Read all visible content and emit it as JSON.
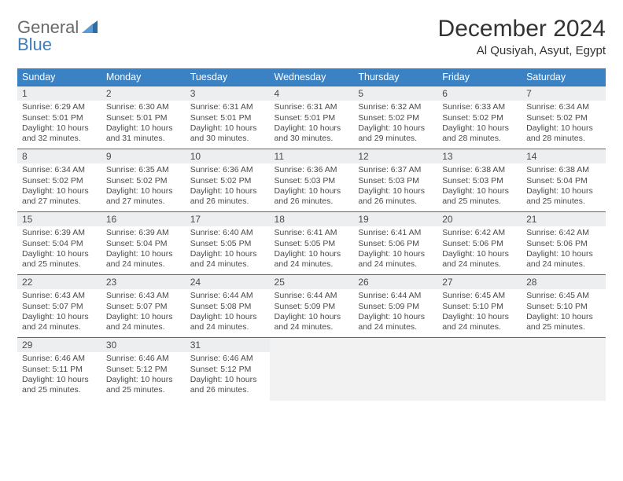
{
  "logo": {
    "line1": "General",
    "line2": "Blue"
  },
  "title": "December 2024",
  "location": "Al Qusiyah, Asyut, Egypt",
  "colors": {
    "header_bg": "#3b82c4",
    "header_text": "#ffffff",
    "row_divider": "#3b6f9f",
    "daynum_bg": "#eceef0",
    "empty_bg": "#f2f2f2",
    "body_text": "#4a4a4a",
    "logo_gray": "#6a6a6a",
    "logo_blue": "#3b7fbf"
  },
  "typography": {
    "title_fontsize": 30,
    "location_fontsize": 15,
    "header_fontsize": 12.5,
    "daynum_fontsize": 12,
    "content_fontsize": 10.5
  },
  "day_headers": [
    "Sunday",
    "Monday",
    "Tuesday",
    "Wednesday",
    "Thursday",
    "Friday",
    "Saturday"
  ],
  "weeks": [
    [
      {
        "n": "1",
        "sr": "6:29 AM",
        "ss": "5:01 PM",
        "dl": "10 hours and 32 minutes."
      },
      {
        "n": "2",
        "sr": "6:30 AM",
        "ss": "5:01 PM",
        "dl": "10 hours and 31 minutes."
      },
      {
        "n": "3",
        "sr": "6:31 AM",
        "ss": "5:01 PM",
        "dl": "10 hours and 30 minutes."
      },
      {
        "n": "4",
        "sr": "6:31 AM",
        "ss": "5:01 PM",
        "dl": "10 hours and 30 minutes."
      },
      {
        "n": "5",
        "sr": "6:32 AM",
        "ss": "5:02 PM",
        "dl": "10 hours and 29 minutes."
      },
      {
        "n": "6",
        "sr": "6:33 AM",
        "ss": "5:02 PM",
        "dl": "10 hours and 28 minutes."
      },
      {
        "n": "7",
        "sr": "6:34 AM",
        "ss": "5:02 PM",
        "dl": "10 hours and 28 minutes."
      }
    ],
    [
      {
        "n": "8",
        "sr": "6:34 AM",
        "ss": "5:02 PM",
        "dl": "10 hours and 27 minutes."
      },
      {
        "n": "9",
        "sr": "6:35 AM",
        "ss": "5:02 PM",
        "dl": "10 hours and 27 minutes."
      },
      {
        "n": "10",
        "sr": "6:36 AM",
        "ss": "5:02 PM",
        "dl": "10 hours and 26 minutes."
      },
      {
        "n": "11",
        "sr": "6:36 AM",
        "ss": "5:03 PM",
        "dl": "10 hours and 26 minutes."
      },
      {
        "n": "12",
        "sr": "6:37 AM",
        "ss": "5:03 PM",
        "dl": "10 hours and 26 minutes."
      },
      {
        "n": "13",
        "sr": "6:38 AM",
        "ss": "5:03 PM",
        "dl": "10 hours and 25 minutes."
      },
      {
        "n": "14",
        "sr": "6:38 AM",
        "ss": "5:04 PM",
        "dl": "10 hours and 25 minutes."
      }
    ],
    [
      {
        "n": "15",
        "sr": "6:39 AM",
        "ss": "5:04 PM",
        "dl": "10 hours and 25 minutes."
      },
      {
        "n": "16",
        "sr": "6:39 AM",
        "ss": "5:04 PM",
        "dl": "10 hours and 24 minutes."
      },
      {
        "n": "17",
        "sr": "6:40 AM",
        "ss": "5:05 PM",
        "dl": "10 hours and 24 minutes."
      },
      {
        "n": "18",
        "sr": "6:41 AM",
        "ss": "5:05 PM",
        "dl": "10 hours and 24 minutes."
      },
      {
        "n": "19",
        "sr": "6:41 AM",
        "ss": "5:06 PM",
        "dl": "10 hours and 24 minutes."
      },
      {
        "n": "20",
        "sr": "6:42 AM",
        "ss": "5:06 PM",
        "dl": "10 hours and 24 minutes."
      },
      {
        "n": "21",
        "sr": "6:42 AM",
        "ss": "5:06 PM",
        "dl": "10 hours and 24 minutes."
      }
    ],
    [
      {
        "n": "22",
        "sr": "6:43 AM",
        "ss": "5:07 PM",
        "dl": "10 hours and 24 minutes."
      },
      {
        "n": "23",
        "sr": "6:43 AM",
        "ss": "5:07 PM",
        "dl": "10 hours and 24 minutes."
      },
      {
        "n": "24",
        "sr": "6:44 AM",
        "ss": "5:08 PM",
        "dl": "10 hours and 24 minutes."
      },
      {
        "n": "25",
        "sr": "6:44 AM",
        "ss": "5:09 PM",
        "dl": "10 hours and 24 minutes."
      },
      {
        "n": "26",
        "sr": "6:44 AM",
        "ss": "5:09 PM",
        "dl": "10 hours and 24 minutes."
      },
      {
        "n": "27",
        "sr": "6:45 AM",
        "ss": "5:10 PM",
        "dl": "10 hours and 24 minutes."
      },
      {
        "n": "28",
        "sr": "6:45 AM",
        "ss": "5:10 PM",
        "dl": "10 hours and 25 minutes."
      }
    ],
    [
      {
        "n": "29",
        "sr": "6:46 AM",
        "ss": "5:11 PM",
        "dl": "10 hours and 25 minutes."
      },
      {
        "n": "30",
        "sr": "6:46 AM",
        "ss": "5:12 PM",
        "dl": "10 hours and 25 minutes."
      },
      {
        "n": "31",
        "sr": "6:46 AM",
        "ss": "5:12 PM",
        "dl": "10 hours and 26 minutes."
      },
      null,
      null,
      null,
      null
    ]
  ],
  "labels": {
    "sunrise": "Sunrise:",
    "sunset": "Sunset:",
    "daylight": "Daylight:"
  }
}
